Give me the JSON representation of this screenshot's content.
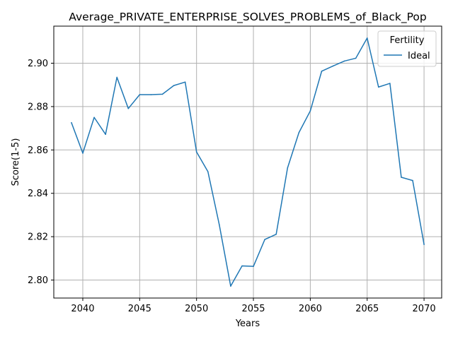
{
  "chart_data": {
    "type": "line",
    "title": "Average_PRIVATE_ENTERPRISE_SOLVES_PROBLEMS_of_Black_Pop",
    "xlabel": "Years",
    "ylabel": "Score(1-5)",
    "xlim": [
      2037.45,
      2071.55
    ],
    "ylim": [
      2.7917,
      2.9171
    ],
    "xticks": [
      2040,
      2045,
      2050,
      2055,
      2060,
      2065,
      2070
    ],
    "yticks": [
      2.8,
      2.82,
      2.84,
      2.86,
      2.88,
      2.9
    ],
    "ytick_labels": [
      "2.80",
      "2.82",
      "2.84",
      "2.86",
      "2.88",
      "2.90"
    ],
    "grid": true,
    "legend": {
      "title": "Fertility",
      "placement": "top-right"
    },
    "series": [
      {
        "name": "Ideal",
        "color": "#1f77b4",
        "x": [
          2039,
          2040,
          2041,
          2042,
          2043,
          2044,
          2045,
          2046,
          2047,
          2048,
          2049,
          2050,
          2051,
          2052,
          2053,
          2054,
          2055,
          2056,
          2057,
          2058,
          2059,
          2060,
          2061,
          2062,
          2063,
          2064,
          2065,
          2066,
          2067,
          2068,
          2069,
          2070
        ],
        "y": [
          2.8726,
          2.8585,
          2.875,
          2.8672,
          2.8935,
          2.8791,
          2.8855,
          2.8855,
          2.8857,
          2.8897,
          2.8913,
          2.8591,
          2.85,
          2.8255,
          2.7972,
          2.8065,
          2.8063,
          2.8187,
          2.8211,
          2.8517,
          2.868,
          2.878,
          2.8963,
          2.8987,
          2.901,
          2.9023,
          2.9116,
          2.889,
          2.8907,
          2.8474,
          2.8459,
          2.8164
        ]
      }
    ]
  }
}
